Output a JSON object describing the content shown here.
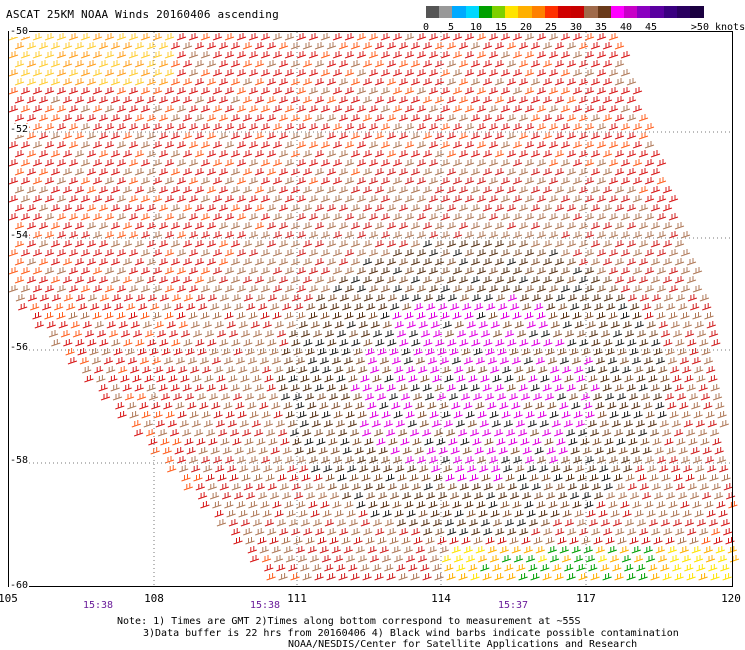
{
  "title": "ASCAT 25KM NOAA Winds 20160406 ascending",
  "legend": {
    "ticks": [
      "0",
      "5",
      "10",
      "15",
      "20",
      "25",
      "30",
      "35",
      "40",
      "45",
      ">50 knots"
    ],
    "colors": [
      "#555555",
      "#999999",
      "#00aaff",
      "#00d8ff",
      "#00a000",
      "#7ed000",
      "#ffe400",
      "#ffb000",
      "#ff8000",
      "#ff3000",
      "#d00000",
      "#c80000",
      "#a06a4a",
      "#6a3a1a",
      "#ff00ff",
      "#c800c8",
      "#8a00c0",
      "#5a00a0",
      "#3a0080",
      "#2a0060",
      "#1a0040"
    ]
  },
  "axes": {
    "lat_labels": [
      "-50",
      "-52",
      "-54",
      "-56",
      "-58",
      "-60"
    ],
    "lon_labels": [
      "105",
      "108",
      "111",
      "114",
      "117",
      "120"
    ],
    "time_labels": [
      "15:38",
      "15:38",
      "15:37"
    ]
  },
  "notes": {
    "line1": "Note: 1) Times are GMT 2)Times along bottom correspond to measurement at ~55S",
    "line2": "3)Data buffer is 22 hrs from 20160406 4) Black wind barbs indicate possible contamination",
    "line3": "NOAA/NESDIS/Center for Satellite Applications and Research"
  }
}
